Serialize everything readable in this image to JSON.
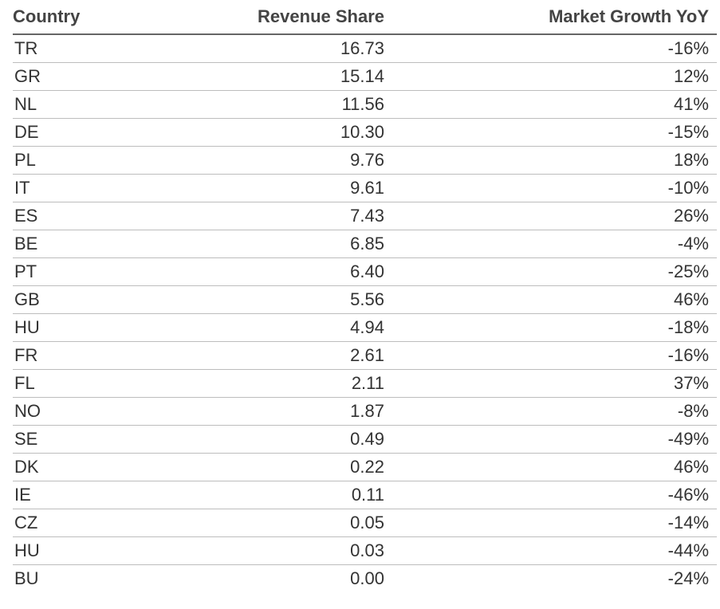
{
  "chart_data": {
    "type": "table",
    "columns": [
      "Country",
      "Revenue Share",
      "Market Growth YoY"
    ],
    "rows": [
      {
        "country": "TR",
        "revenue_share": "16.73",
        "market_growth": "-16%"
      },
      {
        "country": "GR",
        "revenue_share": "15.14",
        "market_growth": "12%"
      },
      {
        "country": "NL",
        "revenue_share": "11.56",
        "market_growth": "41%"
      },
      {
        "country": "DE",
        "revenue_share": "10.30",
        "market_growth": "-15%"
      },
      {
        "country": "PL",
        "revenue_share": "9.76",
        "market_growth": "18%"
      },
      {
        "country": "IT",
        "revenue_share": "9.61",
        "market_growth": "-10%"
      },
      {
        "country": "ES",
        "revenue_share": "7.43",
        "market_growth": "26%"
      },
      {
        "country": "BE",
        "revenue_share": "6.85",
        "market_growth": "-4%"
      },
      {
        "country": "PT",
        "revenue_share": "6.40",
        "market_growth": "-25%"
      },
      {
        "country": "GB",
        "revenue_share": "5.56",
        "market_growth": "46%"
      },
      {
        "country": "HU",
        "revenue_share": "4.94",
        "market_growth": "-18%"
      },
      {
        "country": "FR",
        "revenue_share": "2.61",
        "market_growth": "-16%"
      },
      {
        "country": "FL",
        "revenue_share": "2.11",
        "market_growth": "37%"
      },
      {
        "country": "NO",
        "revenue_share": "1.87",
        "market_growth": "-8%"
      },
      {
        "country": "SE",
        "revenue_share": "0.49",
        "market_growth": "-49%"
      },
      {
        "country": "DK",
        "revenue_share": "0.22",
        "market_growth": "46%"
      },
      {
        "country": "IE",
        "revenue_share": "0.11",
        "market_growth": "-46%"
      },
      {
        "country": "CZ",
        "revenue_share": "0.05",
        "market_growth": "-14%"
      },
      {
        "country": "HU",
        "revenue_share": "0.03",
        "market_growth": "-44%"
      },
      {
        "country": "BU",
        "revenue_share": "0.00",
        "market_growth": "-24%"
      }
    ]
  },
  "colors": {
    "text": "#333333",
    "header_text": "#444444",
    "header_rule": "#666666",
    "row_rule": "#bdbdbd",
    "background": "#ffffff"
  }
}
